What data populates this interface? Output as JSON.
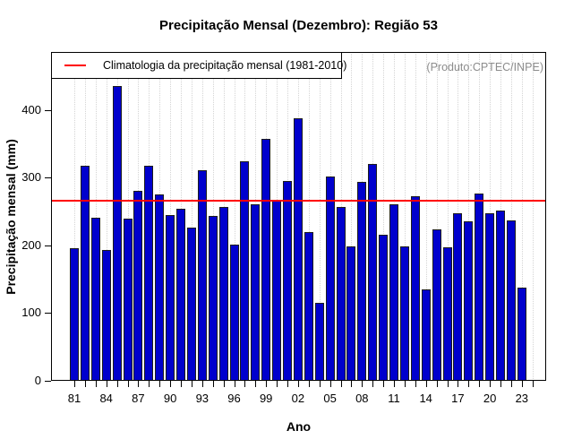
{
  "title": "Precipitação Mensal (Dezembro): Região 53",
  "annotation": "(Produto:CPTEC/INPE)",
  "legend": {
    "label": "Climatologia da precipitação mensal (1981-2010)"
  },
  "x_axis": {
    "label": "Ano",
    "tick_labels": [
      "81",
      "84",
      "87",
      "90",
      "93",
      "96",
      "99",
      "02",
      "05",
      "08",
      "11",
      "14",
      "17",
      "20",
      "23"
    ],
    "first_year": 1981,
    "last_tick_year": 2024,
    "label_every": 3
  },
  "y_axis": {
    "label": "Precipitação mensal (mm)",
    "ticks": [
      0,
      100,
      200,
      300,
      400
    ]
  },
  "colors": {
    "bar": "#0000CD",
    "bar_border": "#1c1c1c",
    "climatology_line": "#ff0000",
    "gridline": "#d4d4d4",
    "annotation_text": "#8c8c8c"
  },
  "chart_data": {
    "type": "bar",
    "title": "Precipitação Mensal (Dezembro): Região 53",
    "xlabel": "Ano",
    "ylabel": "Precipitação mensal (mm)",
    "ylim": [
      0,
      485
    ],
    "grid": "vertical-dotted",
    "legend_position": "top-left",
    "x": [
      1981,
      1982,
      1983,
      1984,
      1985,
      1986,
      1987,
      1988,
      1989,
      1990,
      1991,
      1992,
      1993,
      1994,
      1995,
      1996,
      1997,
      1998,
      1999,
      2000,
      2001,
      2002,
      2003,
      2004,
      2005,
      2006,
      2007,
      2008,
      2009,
      2010,
      2011,
      2012,
      2013,
      2014,
      2015,
      2016,
      2017,
      2018,
      2019,
      2020,
      2021,
      2022,
      2023
    ],
    "values": [
      196,
      318,
      241,
      193,
      435,
      240,
      280,
      318,
      275,
      245,
      254,
      226,
      311,
      244,
      256,
      201,
      324,
      260,
      357,
      267,
      295,
      387,
      220,
      115,
      302,
      256,
      198,
      294,
      320,
      215,
      260,
      198,
      272,
      135,
      223,
      197,
      247,
      235,
      277,
      248,
      251,
      237,
      137
    ],
    "climatology_value": 267.5,
    "climatology_period": "1981-2010"
  }
}
